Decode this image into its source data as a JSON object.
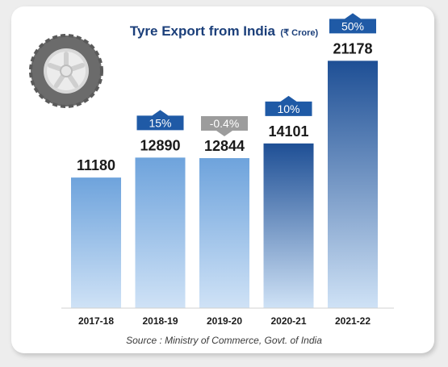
{
  "icons": {
    "tyre": "tyre-icon"
  },
  "colors": {
    "title": "#1b3f7a",
    "bar_light": "#cfe2f6",
    "bar_mid": "#6ea3dc",
    "bar_dark": "#2f68b4",
    "bar_darkest": "#1e4f95",
    "growth_positive": "#1f5aa6",
    "growth_negative": "#9c9c9c"
  },
  "chart_data": {
    "type": "bar",
    "title": "Tyre Export from India",
    "unit": "(₹ Crore)",
    "categories": [
      "2017-18",
      "2018-19",
      "2019-20",
      "2020-21",
      "2021-22"
    ],
    "values": [
      11180,
      12890,
      12844,
      14101,
      21178
    ],
    "value_labels": [
      "11180",
      "12890",
      "12844",
      "14101",
      "21178"
    ],
    "growth_labels": [
      "",
      "15%",
      "-0.4%",
      "10%",
      "50%"
    ],
    "growth_direction": [
      "",
      "up",
      "down",
      "up",
      "up"
    ],
    "ylim": [
      0,
      23000
    ],
    "xlabel": "",
    "ylabel": "",
    "grid": false,
    "legend": "none"
  },
  "source": "Source : Ministry of Commerce, Govt. of India"
}
